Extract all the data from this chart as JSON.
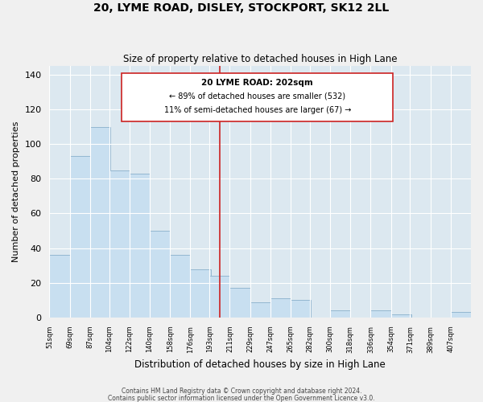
{
  "title": "20, LYME ROAD, DISLEY, STOCKPORT, SK12 2LL",
  "subtitle": "Size of property relative to detached houses in High Lane",
  "xlabel": "Distribution of detached houses by size in High Lane",
  "ylabel": "Number of detached properties",
  "bar_color": "#c8dff0",
  "bar_edge_color": "#8ab0cc",
  "plot_bg_color": "#dce8f0",
  "fig_bg_color": "#f0f0f0",
  "grid_color": "#ffffff",
  "bin_labels": [
    "51sqm",
    "69sqm",
    "87sqm",
    "104sqm",
    "122sqm",
    "140sqm",
    "158sqm",
    "176sqm",
    "193sqm",
    "211sqm",
    "229sqm",
    "247sqm",
    "265sqm",
    "282sqm",
    "300sqm",
    "318sqm",
    "336sqm",
    "354sqm",
    "371sqm",
    "389sqm",
    "407sqm"
  ],
  "bin_edges": [
    51,
    69,
    87,
    104,
    122,
    140,
    158,
    176,
    193,
    211,
    229,
    247,
    265,
    282,
    300,
    318,
    336,
    354,
    371,
    389,
    407
  ],
  "bin_width": 18,
  "values": [
    36,
    93,
    110,
    85,
    83,
    50,
    36,
    28,
    24,
    17,
    9,
    11,
    10,
    0,
    4,
    0,
    4,
    2,
    0,
    0,
    3
  ],
  "property_size": 202,
  "property_label": "20 LYME ROAD: 202sqm",
  "annotation_line1": "← 89% of detached houses are smaller (532)",
  "annotation_line2": "11% of semi-detached houses are larger (67) →",
  "ylim": [
    0,
    145
  ],
  "yticks": [
    0,
    20,
    40,
    60,
    80,
    100,
    120,
    140
  ],
  "xlim_left": 51,
  "xlim_right": 425,
  "footer1": "Contains HM Land Registry data © Crown copyright and database right 2024.",
  "footer2": "Contains public sector information licensed under the Open Government Licence v3.0."
}
